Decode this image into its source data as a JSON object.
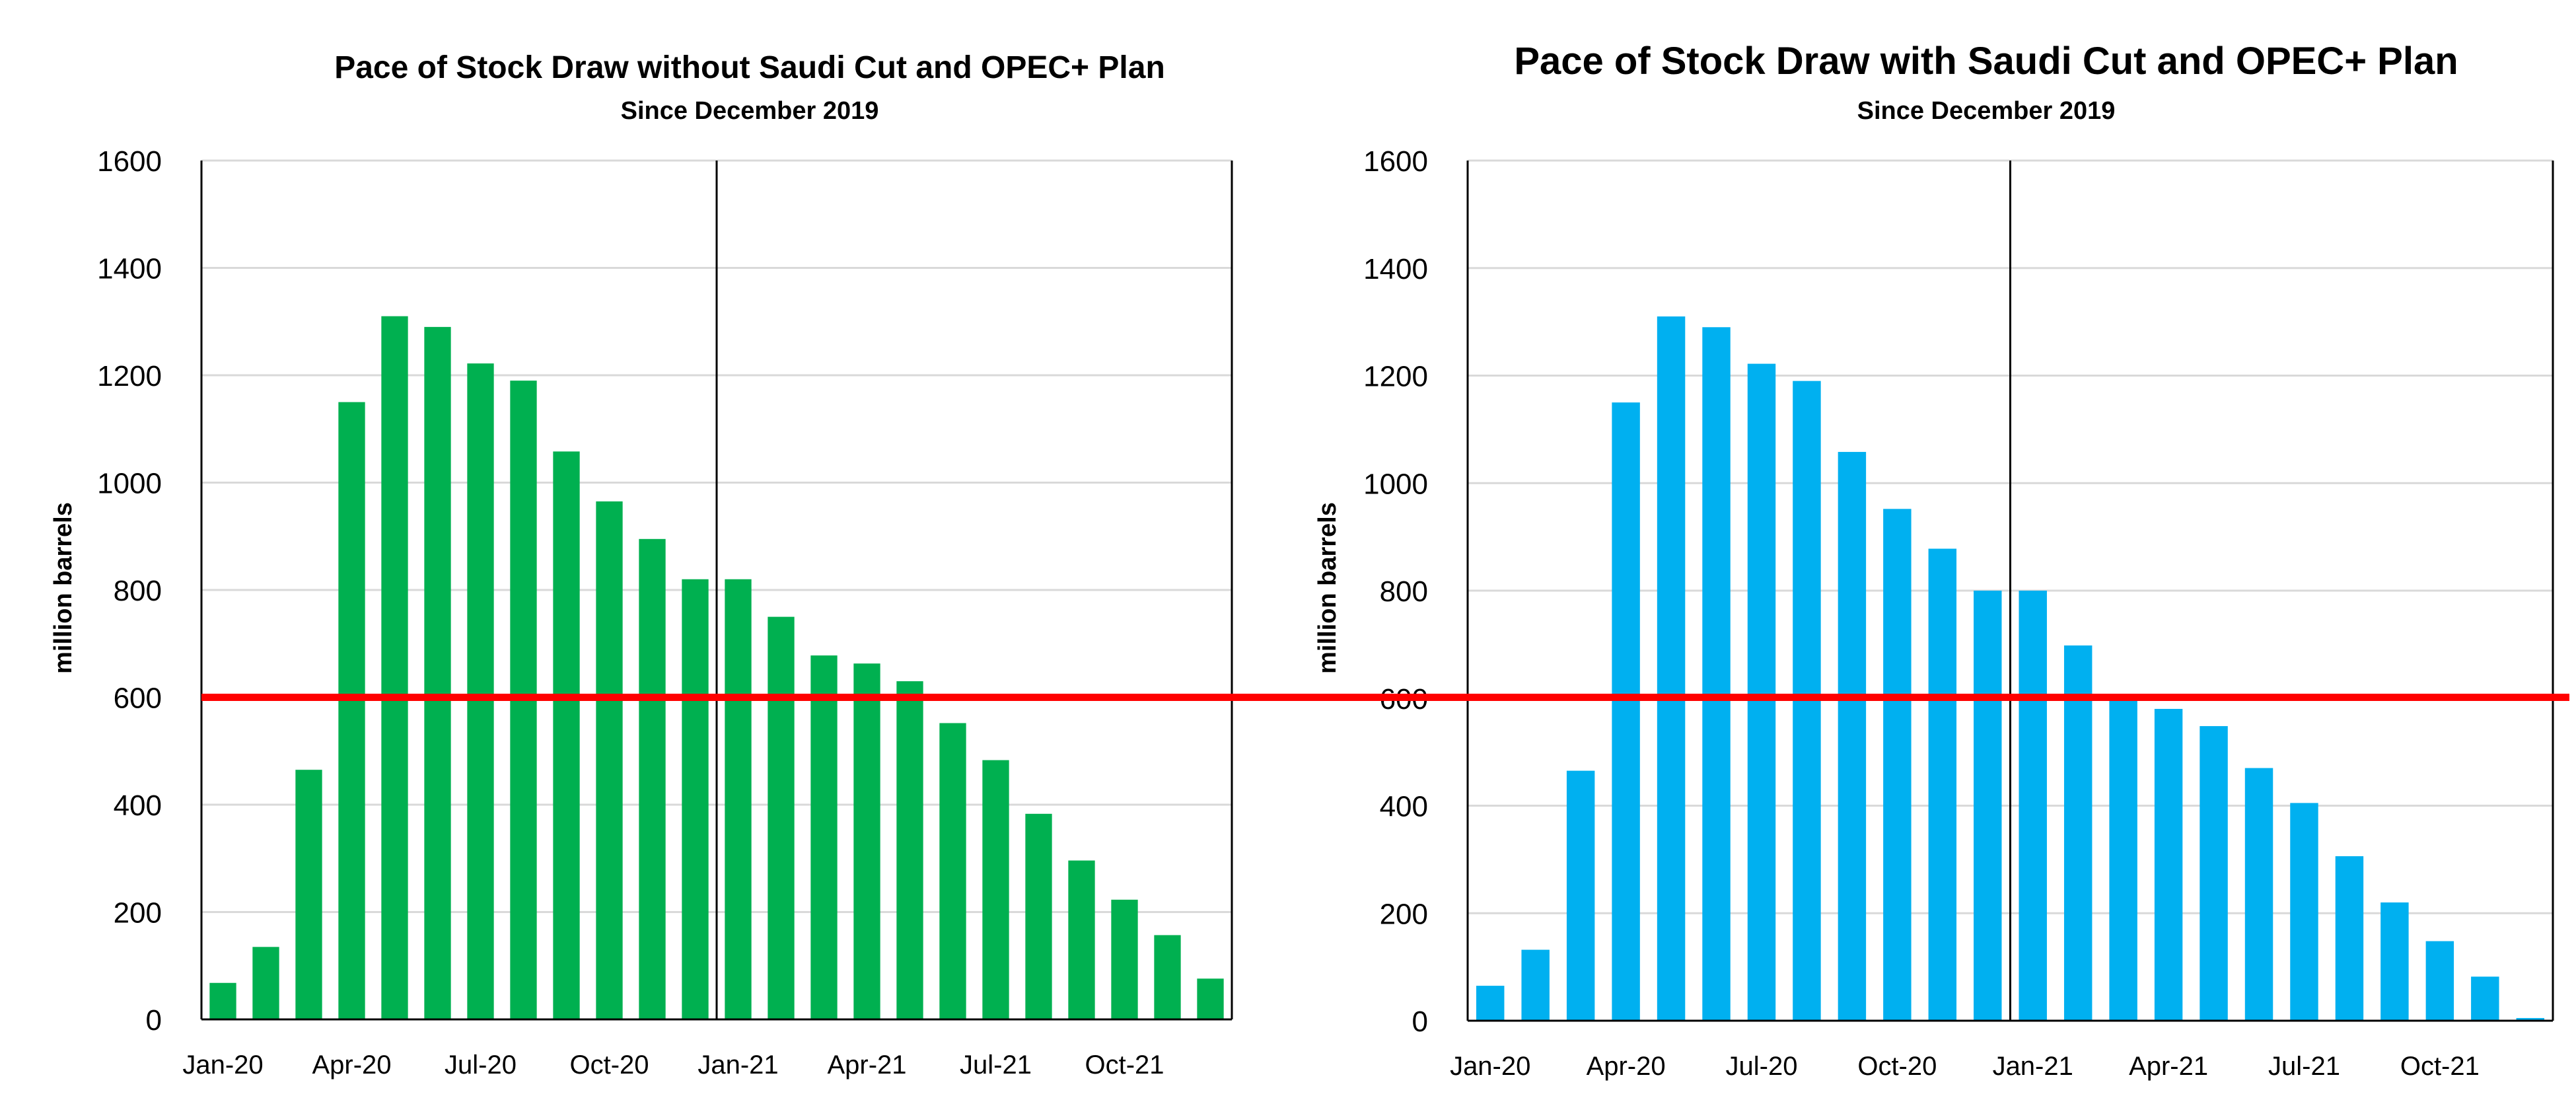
{
  "colors": {
    "left_bars": "#00B050",
    "right_bars": "#00B0F0",
    "threshold_line": "#FF0000",
    "gridlines": "#D9D9D9",
    "axis": "#000000"
  },
  "threshold_value": 600,
  "chart_data": [
    {
      "type": "bar",
      "title": "Pace of Stock Draw without Saudi Cut and OPEC+ Plan",
      "subtitle": "Since December 2019",
      "ylabel": "million barrels",
      "xlabel": "",
      "ylim": [
        0,
        1600
      ],
      "yticks": [
        0,
        200,
        400,
        600,
        800,
        1000,
        1200,
        1400,
        1600
      ],
      "grid": true,
      "xtick_labels": [
        "Jan-20",
        "Apr-20",
        "Jul-20",
        "Oct-20",
        "Jan-21",
        "Apr-21",
        "Jul-21",
        "Oct-21"
      ],
      "categories": [
        "Jan-20",
        "Feb-20",
        "Mar-20",
        "Apr-20",
        "May-20",
        "Jun-20",
        "Jul-20",
        "Aug-20",
        "Sep-20",
        "Oct-20",
        "Nov-20",
        "Dec-20",
        "Jan-21",
        "Feb-21",
        "Mar-21",
        "Apr-21",
        "May-21",
        "Jun-21",
        "Jul-21",
        "Aug-21",
        "Sep-21",
        "Oct-21",
        "Nov-21",
        "Dec-21"
      ],
      "values": [
        68,
        135,
        465,
        1150,
        1310,
        1290,
        1222,
        1190,
        1058,
        965,
        895,
        820,
        820,
        750,
        678,
        663,
        630,
        552,
        483,
        383,
        296,
        223,
        157,
        76
      ],
      "year_divider_between": [
        "Dec-20",
        "Jan-21"
      ]
    },
    {
      "type": "bar",
      "title": "Pace of Stock Draw with Saudi Cut and OPEC+ Plan",
      "subtitle": "Since December 2019",
      "ylabel": "million barrels",
      "xlabel": "",
      "ylim": [
        0,
        1600
      ],
      "yticks": [
        0,
        200,
        400,
        600,
        800,
        1000,
        1200,
        1400,
        1600
      ],
      "grid": true,
      "xtick_labels": [
        "Jan-20",
        "Apr-20",
        "Jul-20",
        "Oct-20",
        "Jan-21",
        "Apr-21",
        "Jul-21",
        "Oct-21"
      ],
      "categories": [
        "Jan-20",
        "Feb-20",
        "Mar-20",
        "Apr-20",
        "May-20",
        "Jun-20",
        "Jul-20",
        "Aug-20",
        "Sep-20",
        "Oct-20",
        "Nov-20",
        "Dec-20",
        "Jan-21",
        "Feb-21",
        "Mar-21",
        "Apr-21",
        "May-21",
        "Jun-21",
        "Jul-21",
        "Aug-21",
        "Sep-21",
        "Oct-21",
        "Nov-21",
        "Dec-21"
      ],
      "values": [
        65,
        132,
        465,
        1150,
        1310,
        1290,
        1222,
        1190,
        1058,
        952,
        878,
        800,
        800,
        698,
        597,
        580,
        548,
        470,
        405,
        306,
        220,
        148,
        82,
        5
      ],
      "year_divider_between": [
        "Dec-20",
        "Jan-21"
      ]
    }
  ]
}
